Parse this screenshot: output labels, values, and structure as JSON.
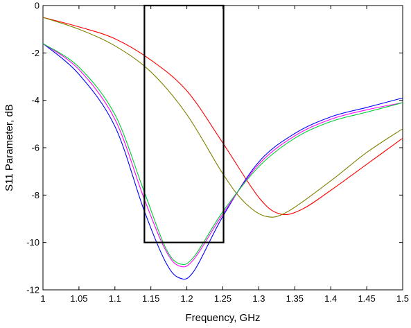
{
  "chart_data": {
    "type": "line",
    "title": "",
    "xlabel": "Frequency, GHz",
    "ylabel": "S11 Parameter, dB",
    "xlim": [
      1,
      1.5
    ],
    "ylim": [
      -12,
      0
    ],
    "xticks": [
      1,
      1.05,
      1.1,
      1.15,
      1.2,
      1.25,
      1.3,
      1.35,
      1.4,
      1.45,
      1.5
    ],
    "xtick_labels": [
      "1",
      "1.05",
      "1.1",
      "1.15",
      "1.2",
      "1.25",
      "1.3",
      "1.35",
      "1.4",
      "1.45",
      "1.5"
    ],
    "yticks": [
      0,
      -2,
      -4,
      -6,
      -8,
      -10,
      -12
    ],
    "ytick_labels": [
      "0",
      "-2",
      "-4",
      "-6",
      "-8",
      "-10",
      "-12"
    ],
    "grid": false,
    "legend": "none",
    "series": [
      {
        "color": "#ff0000",
        "x": [
          1.0,
          1.05,
          1.1,
          1.15,
          1.2,
          1.25,
          1.3,
          1.33,
          1.36,
          1.4,
          1.45,
          1.5
        ],
        "y": [
          -0.5,
          -0.9,
          -1.4,
          -2.3,
          -3.6,
          -5.8,
          -8.1,
          -8.8,
          -8.6,
          -7.8,
          -6.7,
          -5.6
        ]
      },
      {
        "color": "#808000",
        "x": [
          1.0,
          1.05,
          1.1,
          1.15,
          1.2,
          1.25,
          1.28,
          1.31,
          1.34,
          1.4,
          1.45,
          1.5
        ],
        "y": [
          -0.5,
          -1.0,
          -1.7,
          -2.8,
          -4.6,
          -7.1,
          -8.3,
          -8.9,
          -8.7,
          -7.4,
          -6.2,
          -5.2
        ]
      },
      {
        "color": "#0000ff",
        "x": [
          1.0,
          1.05,
          1.1,
          1.14,
          1.17,
          1.19,
          1.21,
          1.25,
          1.3,
          1.35,
          1.4,
          1.45,
          1.5
        ],
        "y": [
          -1.6,
          -2.9,
          -5.1,
          -8.6,
          -10.8,
          -11.5,
          -11.2,
          -8.9,
          -6.6,
          -5.4,
          -4.7,
          -4.3,
          -3.9
        ]
      },
      {
        "color": "#ff00ff",
        "x": [
          1.0,
          1.05,
          1.1,
          1.14,
          1.17,
          1.19,
          1.21,
          1.25,
          1.3,
          1.35,
          1.4,
          1.45,
          1.5
        ],
        "y": [
          -1.6,
          -2.7,
          -4.8,
          -8.1,
          -10.3,
          -11.0,
          -10.7,
          -8.8,
          -6.7,
          -5.5,
          -4.8,
          -4.4,
          -4.1
        ]
      },
      {
        "color": "#00cc33",
        "x": [
          1.0,
          1.05,
          1.1,
          1.14,
          1.17,
          1.19,
          1.21,
          1.25,
          1.3,
          1.35,
          1.4,
          1.45,
          1.5
        ],
        "y": [
          -1.6,
          -2.6,
          -4.6,
          -7.8,
          -10.2,
          -10.9,
          -10.6,
          -8.7,
          -6.8,
          -5.6,
          -4.9,
          -4.5,
          -4.1
        ]
      }
    ],
    "annotations": [
      {
        "type": "rectangle",
        "color": "#000000",
        "x_range": [
          1.141,
          1.251
        ],
        "y_range": [
          -10,
          0
        ]
      }
    ]
  }
}
